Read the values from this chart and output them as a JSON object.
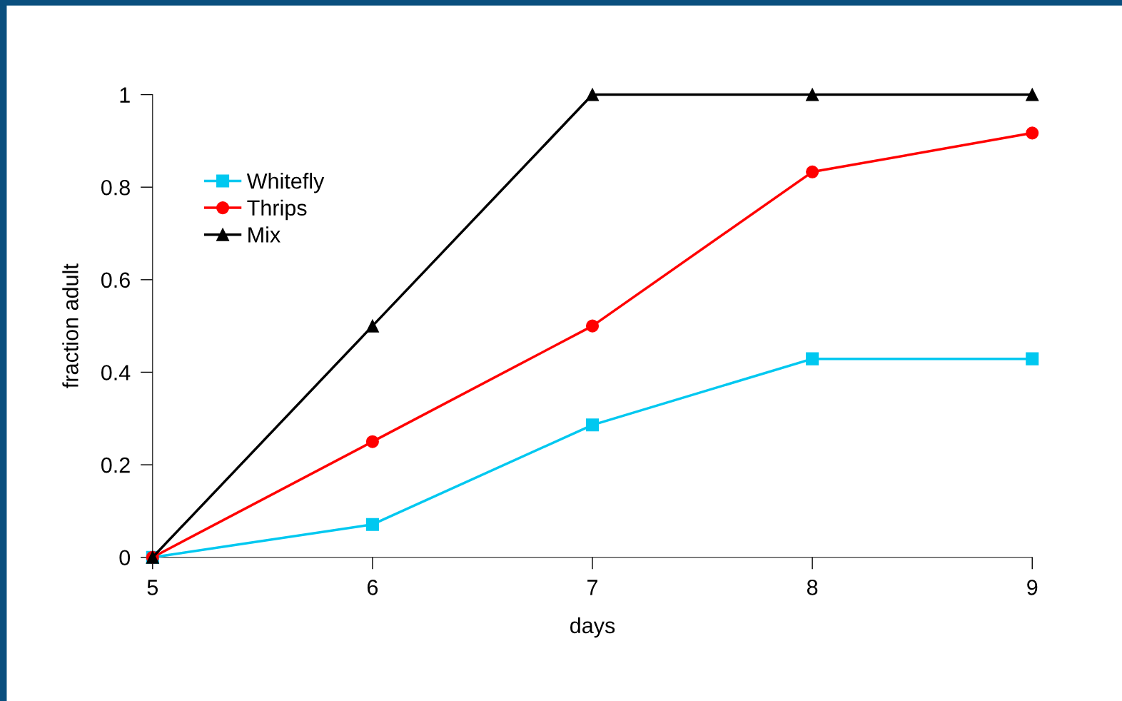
{
  "chart_data": {
    "type": "line",
    "xlabel": "days",
    "ylabel": "fraction adult",
    "x": [
      5,
      6,
      7,
      8,
      9
    ],
    "series": [
      {
        "name": "Whitefly",
        "color": "#00c8f0",
        "marker": "square",
        "values": [
          0,
          0.071,
          0.286,
          0.429,
          0.429
        ]
      },
      {
        "name": "Thrips",
        "color": "#ff0000",
        "marker": "circle",
        "values": [
          0,
          0.25,
          0.5,
          0.833,
          0.917
        ]
      },
      {
        "name": "Mix",
        "color": "#000000",
        "marker": "triangle",
        "values": [
          0,
          0.5,
          1,
          1,
          1
        ]
      }
    ],
    "xlim": [
      5,
      9
    ],
    "xticks": [
      5,
      6,
      7,
      8,
      9
    ],
    "ylim": [
      0,
      1
    ],
    "yticks": [
      0,
      0.2,
      0.4,
      0.6,
      0.8,
      1
    ],
    "grid": false,
    "legend": "top left",
    "line_style": "solid"
  }
}
